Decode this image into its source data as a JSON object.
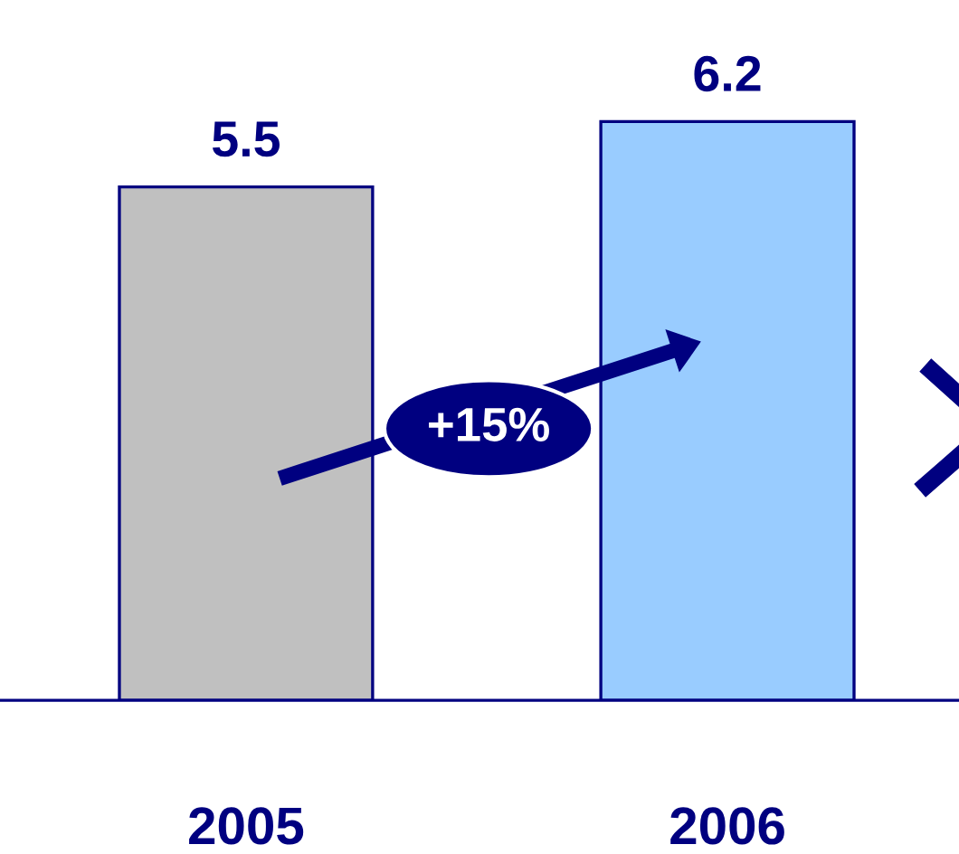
{
  "chart_data": {
    "type": "bar",
    "categories": [
      "2005",
      "2006"
    ],
    "values": [
      5.5,
      6.2
    ],
    "colors": [
      "#c0c0c0",
      "#99ccff"
    ],
    "data_labels": true,
    "grid": false,
    "tick_labels": "x",
    "annotations": [
      "+15%"
    ]
  }
}
